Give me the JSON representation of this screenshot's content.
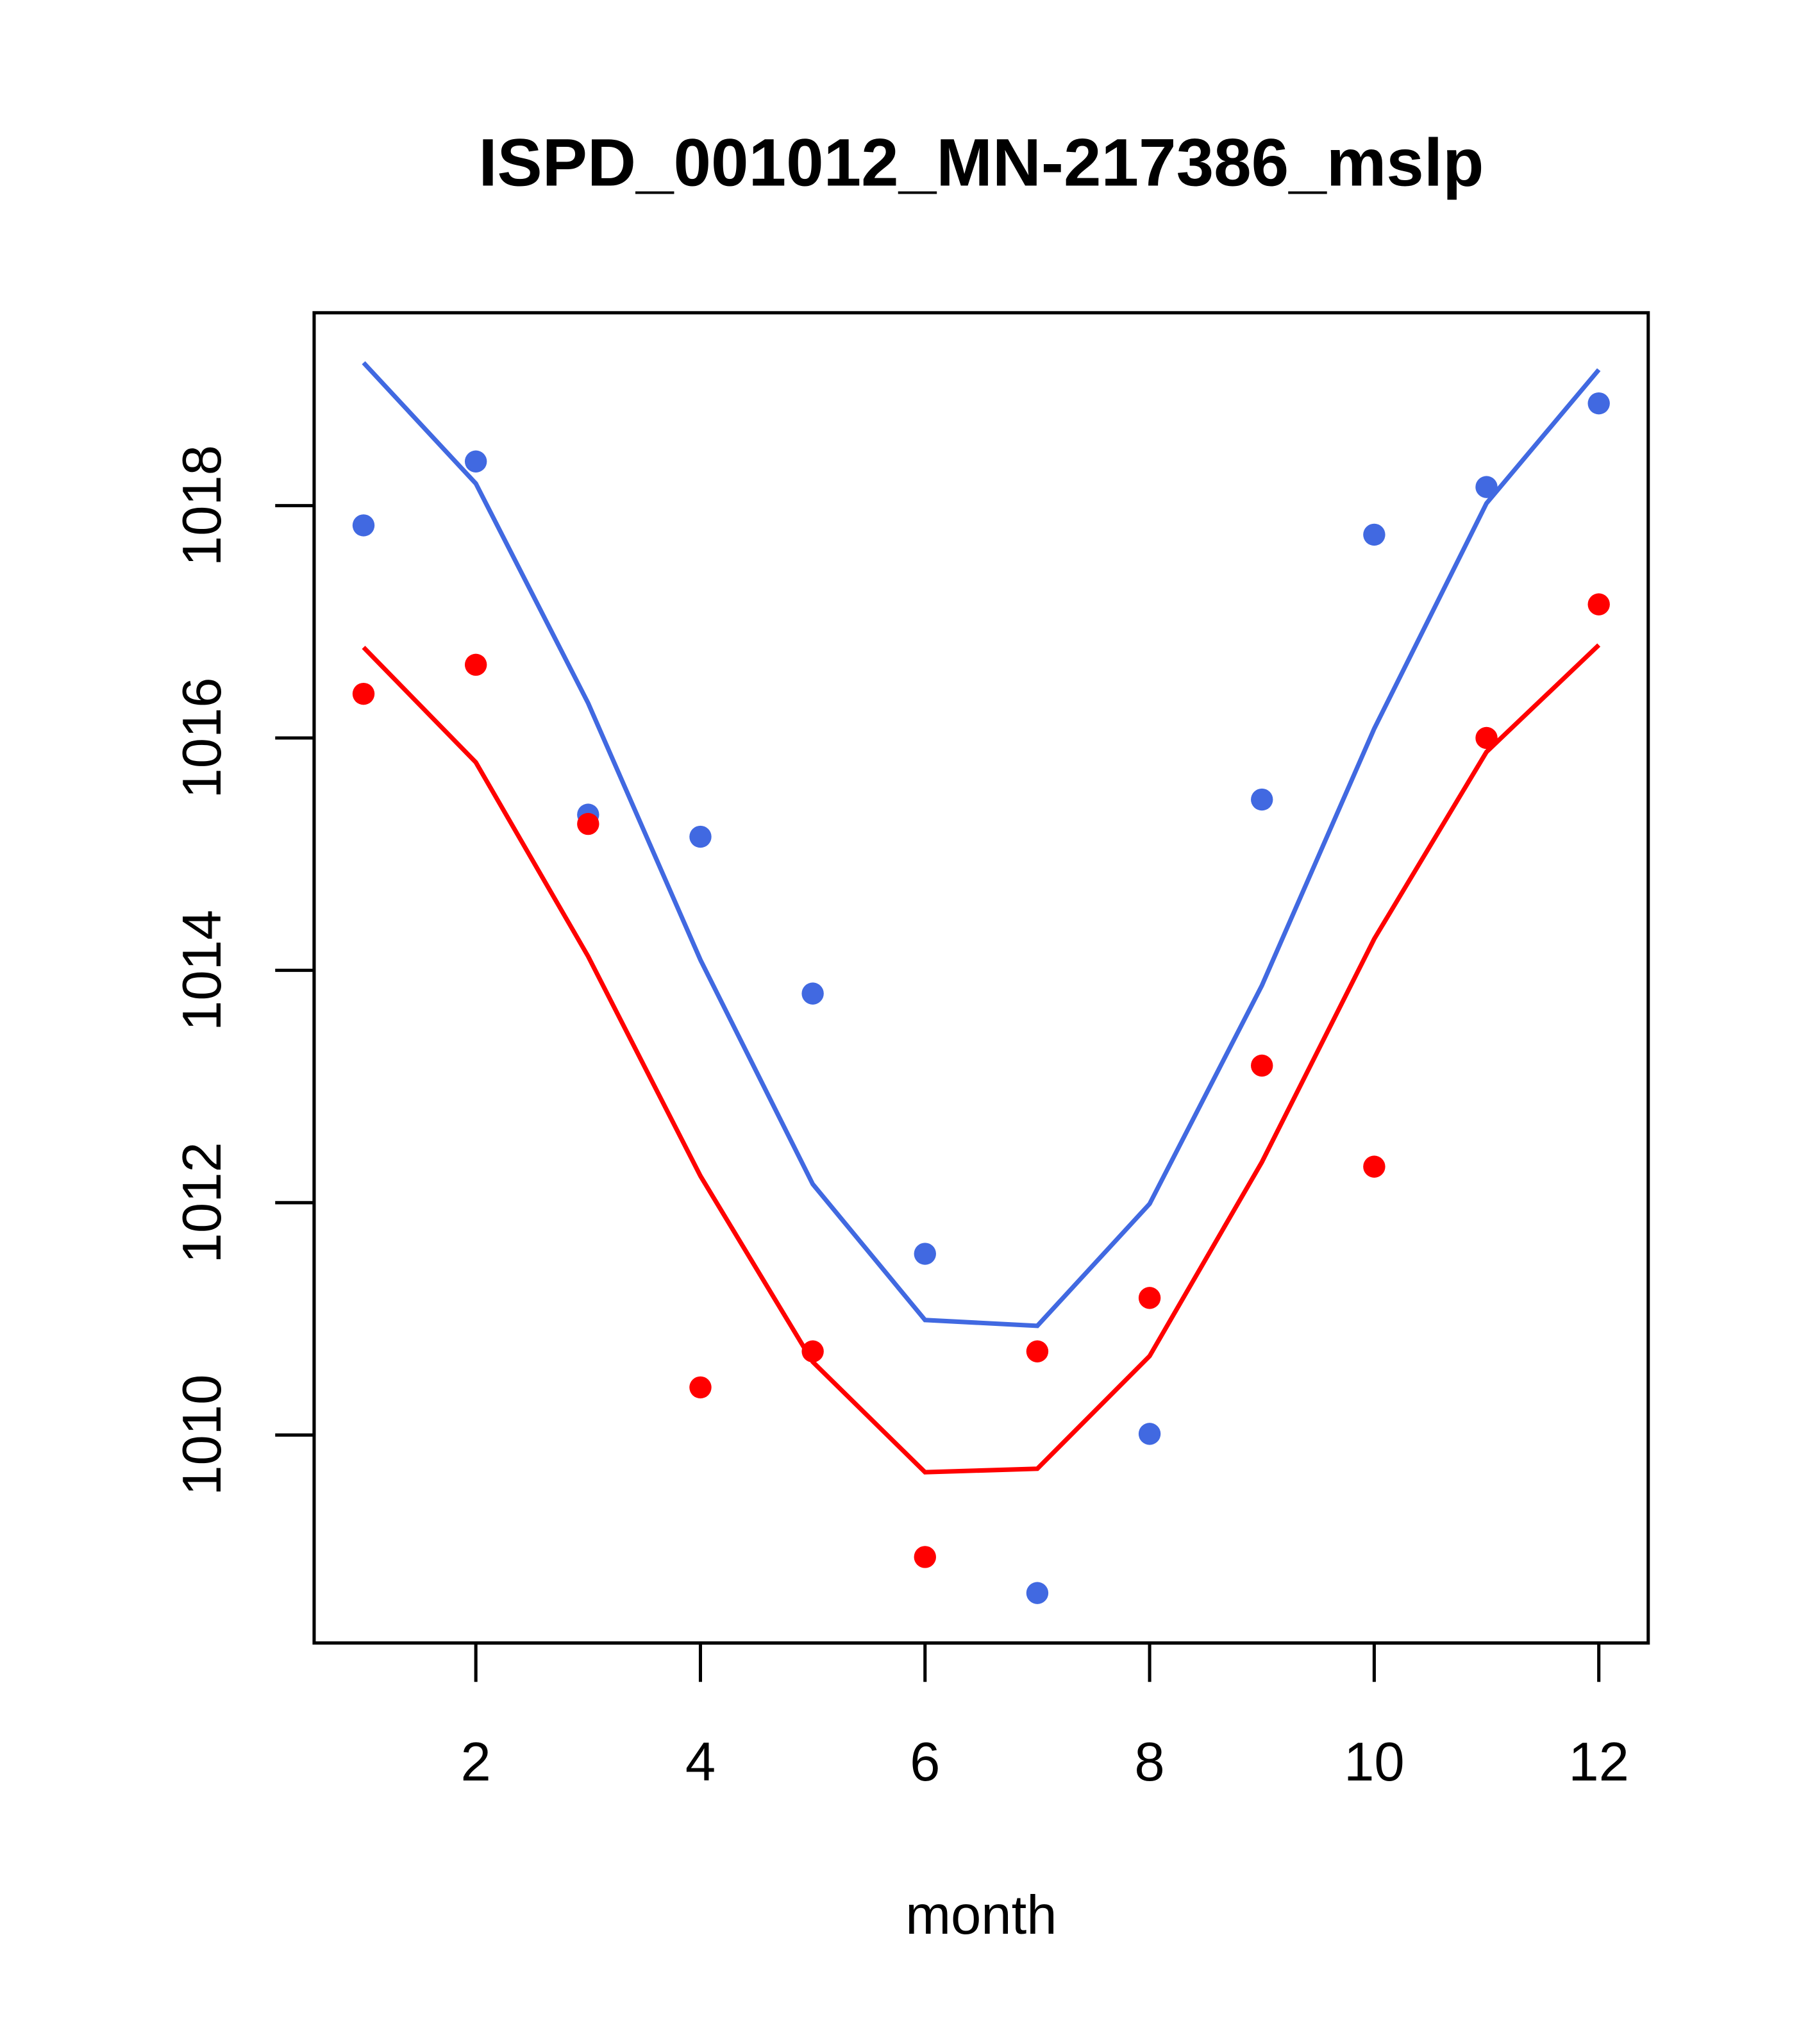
{
  "chart_data": {
    "type": "line",
    "title": "ISPD_001012_MN-217386_mslp",
    "xlabel": "month",
    "ylabel": "",
    "xlim": [
      0.56,
      12.44
    ],
    "ylim": [
      1008.21,
      1019.66
    ],
    "xticks": [
      2,
      4,
      6,
      8,
      10,
      12
    ],
    "yticks": [
      1010,
      1012,
      1014,
      1016,
      1018
    ],
    "grid": false,
    "x": [
      1,
      2,
      3,
      4,
      5,
      6,
      7,
      8,
      9,
      10,
      11,
      12
    ],
    "series": [
      {
        "name": "blue line",
        "kind": "line",
        "color": "#4169E1",
        "values": [
          1019.23,
          1018.19,
          1016.3,
          1014.09,
          1012.16,
          1010.99,
          1010.94,
          1011.99,
          1013.87,
          1016.08,
          1018.02,
          1019.17
        ]
      },
      {
        "name": "red line",
        "kind": "line",
        "color": "#FF0000",
        "values": [
          1016.78,
          1015.79,
          1014.12,
          1012.23,
          1010.63,
          1009.68,
          1009.71,
          1010.68,
          1012.35,
          1014.27,
          1015.88,
          1016.8
        ]
      },
      {
        "name": "blue points",
        "kind": "points",
        "color": "#4169E1",
        "values": [
          1017.83,
          1018.38,
          1015.34,
          1015.15,
          1013.8,
          1011.56,
          1008.64,
          1010.01,
          1015.47,
          1017.75,
          1018.16,
          1018.88
        ]
      },
      {
        "name": "red points",
        "kind": "points",
        "color": "#FF0000",
        "values": [
          1016.38,
          1016.63,
          1015.26,
          1010.41,
          1010.72,
          1008.95,
          1010.72,
          1011.18,
          1013.18,
          1012.31,
          1016.0,
          1017.15
        ]
      }
    ]
  }
}
